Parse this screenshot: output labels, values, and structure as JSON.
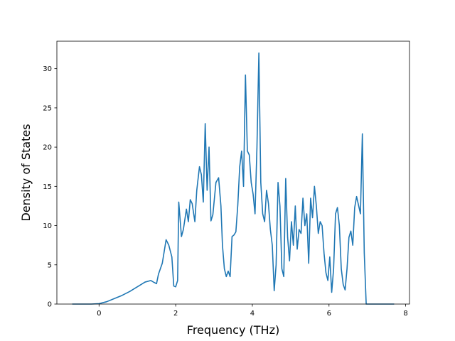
{
  "chart_data": {
    "type": "line",
    "title": "",
    "xlabel": "Frequency (THz)",
    "ylabel": "Density of States",
    "xlim": [
      -1.1,
      8.1
    ],
    "ylim": [
      0,
      33.5
    ],
    "xticks": [
      "0",
      "2",
      "4",
      "6",
      "8"
    ],
    "yticks": [
      "0",
      "5",
      "10",
      "15",
      "20",
      "25",
      "30"
    ],
    "grid": false,
    "legend": "none",
    "line_color": "#1f77b4",
    "series": [
      {
        "x": [
          -0.7,
          -0.2,
          0.0,
          0.2,
          0.4,
          0.6,
          0.8,
          1.0,
          1.2,
          1.35,
          1.42,
          1.5,
          1.55,
          1.65,
          1.75,
          1.82,
          1.9,
          1.95,
          2.0,
          2.05,
          2.08,
          2.15,
          2.2,
          2.28,
          2.33,
          2.38,
          2.43,
          2.5,
          2.55,
          2.62,
          2.67,
          2.72,
          2.77,
          2.82,
          2.87,
          2.92,
          2.97,
          3.05,
          3.12,
          3.18,
          3.22,
          3.27,
          3.32,
          3.37,
          3.42,
          3.47,
          3.52,
          3.57,
          3.62,
          3.67,
          3.72,
          3.77,
          3.82,
          3.87,
          3.92,
          3.97,
          4.02,
          4.07,
          4.12,
          4.17,
          4.22,
          4.27,
          4.32,
          4.37,
          4.42,
          4.47,
          4.52,
          4.57,
          4.62,
          4.67,
          4.72,
          4.77,
          4.82,
          4.87,
          4.92,
          4.97,
          5.02,
          5.07,
          5.12,
          5.17,
          5.22,
          5.27,
          5.32,
          5.37,
          5.42,
          5.47,
          5.52,
          5.57,
          5.62,
          5.67,
          5.72,
          5.77,
          5.82,
          5.87,
          5.92,
          5.97,
          6.02,
          6.07,
          6.12,
          6.17,
          6.22,
          6.27,
          6.32,
          6.37,
          6.42,
          6.47,
          6.52,
          6.57,
          6.62,
          6.67,
          6.72,
          6.77,
          6.82,
          6.87,
          6.92,
          6.97,
          7.02,
          7.1,
          7.7
        ],
        "y": [
          0,
          0,
          0.05,
          0.3,
          0.7,
          1.1,
          1.6,
          2.2,
          2.8,
          3.0,
          2.8,
          2.6,
          3.8,
          5.2,
          8.2,
          7.5,
          6.0,
          2.3,
          2.2,
          3.0,
          13.0,
          8.6,
          9.5,
          12.1,
          10.5,
          13.3,
          12.8,
          10.5,
          14.5,
          17.5,
          16.5,
          13.0,
          23.0,
          14.5,
          20.0,
          10.6,
          11.4,
          15.5,
          16.1,
          12.5,
          7.5,
          4.5,
          3.5,
          4.2,
          3.5,
          8.6,
          8.8,
          9.2,
          12.6,
          17.5,
          19.5,
          15.0,
          29.2,
          19.5,
          19.0,
          15.5,
          14.0,
          11.5,
          20.0,
          32.0,
          15.5,
          11.5,
          10.5,
          14.5,
          12.8,
          9.5,
          7.5,
          1.7,
          5.0,
          15.5,
          12.5,
          4.5,
          3.5,
          16.0,
          8.5,
          5.5,
          10.5,
          7.5,
          12.5,
          7.0,
          9.5,
          9.0,
          13.5,
          10.0,
          11.5,
          5.2,
          13.5,
          11.0,
          15.0,
          12.5,
          9.0,
          10.5,
          10.0,
          6.5,
          4.0,
          3.0,
          6.0,
          1.5,
          4.5,
          11.5,
          12.3,
          10.0,
          4.5,
          2.5,
          1.8,
          4.5,
          8.5,
          9.3,
          7.5,
          12.3,
          13.7,
          12.6,
          11.5,
          21.7,
          6.5,
          0,
          0,
          0,
          0
        ]
      }
    ]
  }
}
